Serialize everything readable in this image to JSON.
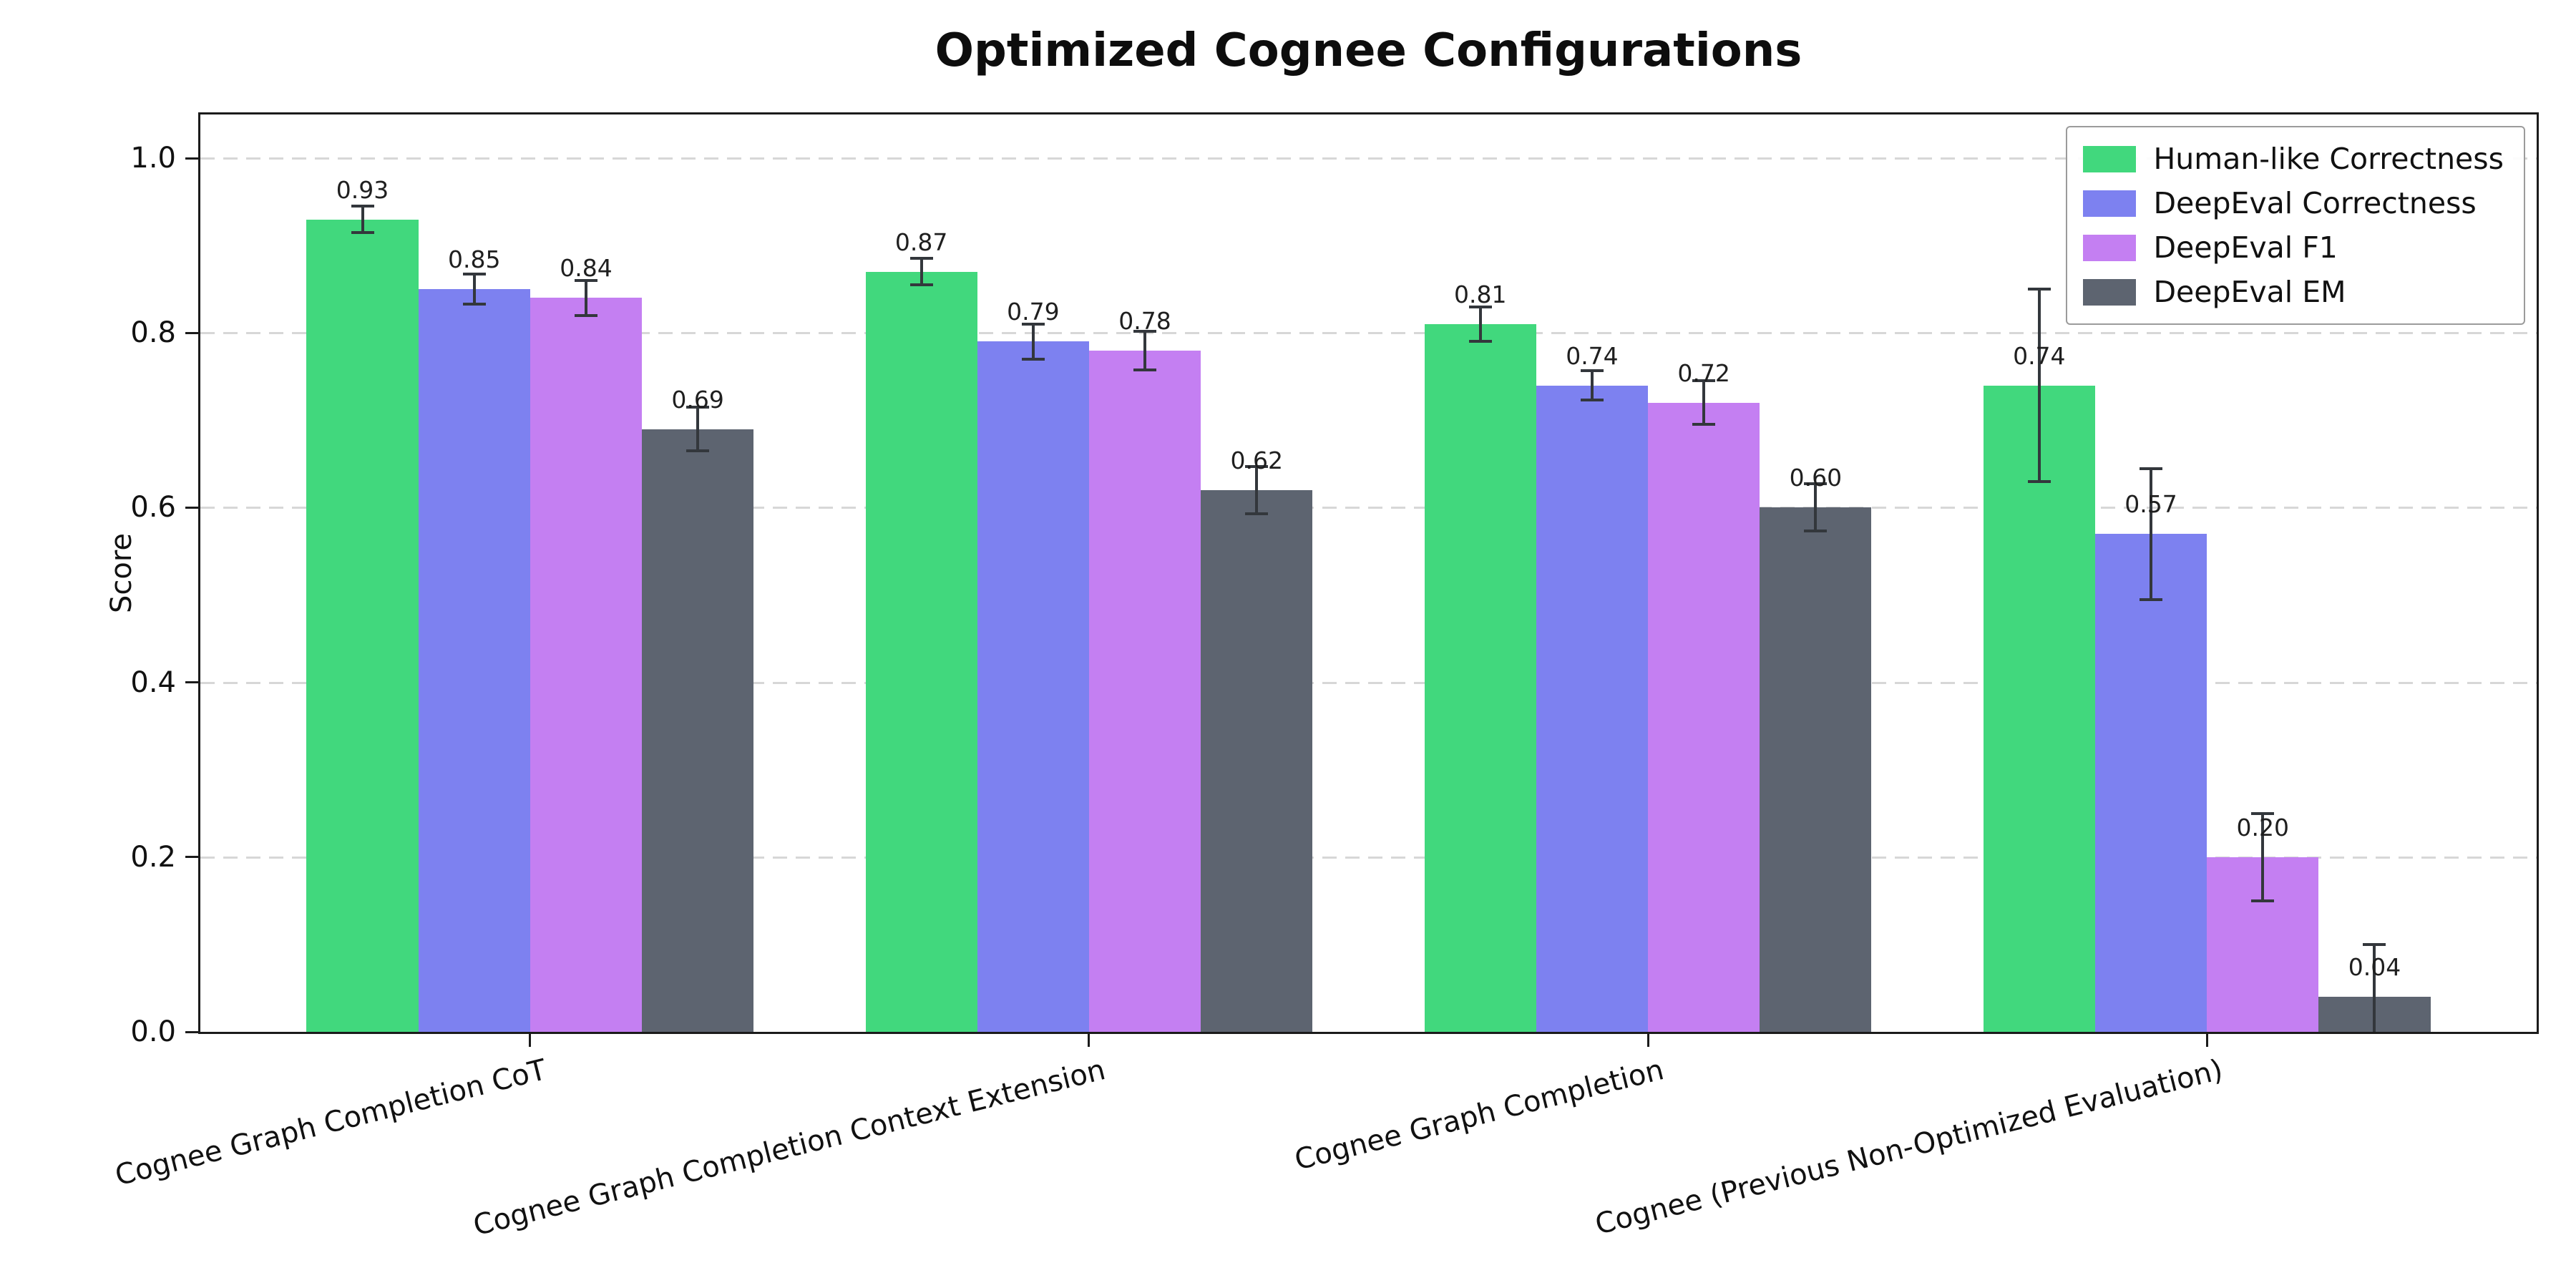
{
  "chart_data": {
    "type": "bar",
    "title": "Optimized Cognee Configurations",
    "xlabel": "",
    "ylabel": "Score",
    "ylim": [
      0,
      1.05
    ],
    "yticks": [
      0,
      0.2,
      0.4,
      0.6,
      0.8,
      1.0
    ],
    "grid": "horizontal-dashed",
    "legend_position": "upper-right",
    "categories": [
      "Cognee Graph Completion CoT",
      "Cognee Graph Completion Context Extension",
      "Cognee Graph Completion",
      "Cognee (Previous Non-Optimized Evaluation)"
    ],
    "series": [
      {
        "name": "Human-like Correctness",
        "color": "#41d87d",
        "values": [
          0.93,
          0.87,
          0.81,
          0.74
        ],
        "errors": [
          0.015,
          0.015,
          0.02,
          0.11
        ]
      },
      {
        "name": "DeepEval Correctness",
        "color": "#7d81f0",
        "values": [
          0.85,
          0.79,
          0.74,
          0.57
        ],
        "errors": [
          0.017,
          0.02,
          0.017,
          0.075
        ]
      },
      {
        "name": "DeepEval F1",
        "color": "#c47ff2",
        "values": [
          0.84,
          0.78,
          0.72,
          0.2
        ],
        "errors": [
          0.02,
          0.022,
          0.025,
          0.05
        ]
      },
      {
        "name": "DeepEval EM",
        "color": "#5d6470",
        "values": [
          0.69,
          0.62,
          0.6,
          0.04
        ],
        "errors": [
          0.025,
          0.027,
          0.027,
          0.06
        ]
      }
    ],
    "error_bar_color": "#33373c",
    "value_label_format": "2dp"
  }
}
